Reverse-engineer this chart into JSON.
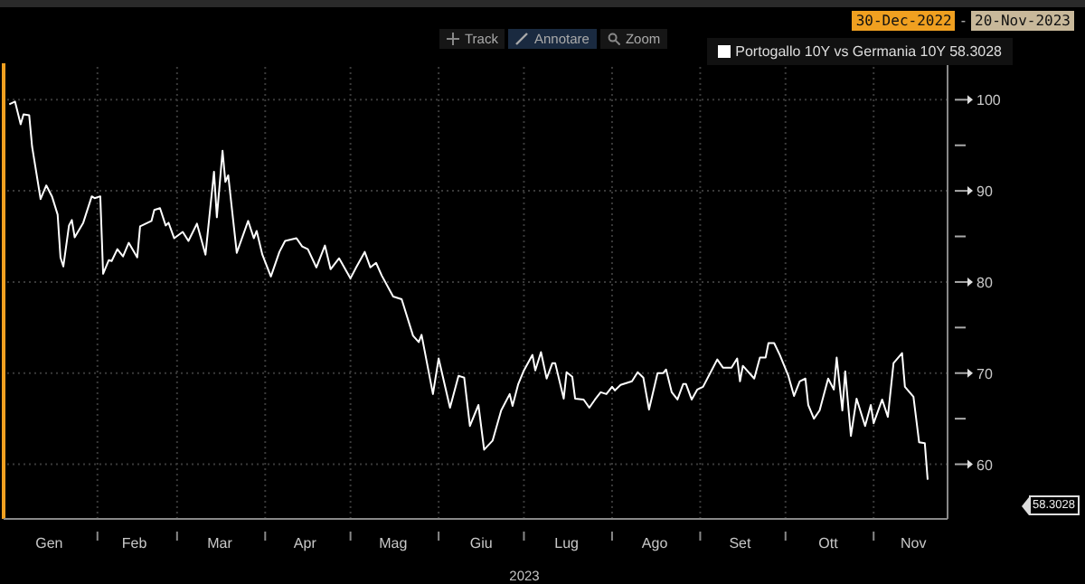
{
  "chart_data": {
    "type": "line",
    "xlabel": "2023",
    "x": [
      "2023-01-01",
      "2023-01-03",
      "2023-01-05",
      "2023-01-06",
      "2023-01-08",
      "2023-01-09",
      "2023-01-12",
      "2023-01-14",
      "2023-01-16",
      "2023-01-18",
      "2023-01-19",
      "2023-01-20",
      "2023-01-22",
      "2023-01-23",
      "2023-01-24",
      "2023-01-27",
      "2023-01-30",
      "2023-01-31",
      "2023-02-02",
      "2023-02-03",
      "2023-02-05",
      "2023-02-06",
      "2023-02-08",
      "2023-02-10",
      "2023-02-12",
      "2023-02-15",
      "2023-02-16",
      "2023-02-20",
      "2023-02-21",
      "2023-02-23",
      "2023-02-25",
      "2023-02-26",
      "2023-02-28",
      "2023-03-03",
      "2023-03-05",
      "2023-03-08",
      "2023-03-11",
      "2023-03-14",
      "2023-03-15",
      "2023-03-17",
      "2023-03-18",
      "2023-03-19",
      "2023-03-22",
      "2023-03-26",
      "2023-03-28",
      "2023-03-29",
      "2023-03-31",
      "2023-04-03",
      "2023-04-06",
      "2023-04-08",
      "2023-04-12",
      "2023-04-14",
      "2023-04-16",
      "2023-04-19",
      "2023-04-22",
      "2023-04-24",
      "2023-04-27",
      "2023-05-01",
      "2023-05-03",
      "2023-05-06",
      "2023-05-08",
      "2023-05-10",
      "2023-05-12",
      "2023-05-16",
      "2023-05-19",
      "2023-05-23",
      "2023-05-25",
      "2023-05-26",
      "2023-05-30",
      "2023-06-01",
      "2023-06-05",
      "2023-06-08",
      "2023-06-10",
      "2023-06-12",
      "2023-06-15",
      "2023-06-17",
      "2023-06-20",
      "2023-06-23",
      "2023-06-26",
      "2023-06-27",
      "2023-06-29",
      "2023-07-01",
      "2023-07-04",
      "2023-07-05",
      "2023-07-07",
      "2023-07-09",
      "2023-07-11",
      "2023-07-12",
      "2023-07-15",
      "2023-07-16",
      "2023-07-18",
      "2023-07-19",
      "2023-07-22",
      "2023-07-24",
      "2023-07-26",
      "2023-07-28",
      "2023-07-30",
      "2023-08-01",
      "2023-08-02",
      "2023-08-04",
      "2023-08-08",
      "2023-08-10",
      "2023-08-12",
      "2023-08-14",
      "2023-08-17",
      "2023-08-19",
      "2023-08-20",
      "2023-08-22",
      "2023-08-24",
      "2023-08-26",
      "2023-08-27",
      "2023-08-29",
      "2023-08-31",
      "2023-09-02",
      "2023-09-05",
      "2023-09-07",
      "2023-09-09",
      "2023-09-12",
      "2023-09-14",
      "2023-09-15",
      "2023-09-16",
      "2023-09-20",
      "2023-09-22",
      "2023-09-24",
      "2023-09-25",
      "2023-09-27",
      "2023-09-29",
      "2023-10-02",
      "2023-10-04",
      "2023-10-06",
      "2023-10-08",
      "2023-10-09",
      "2023-10-11",
      "2023-10-13",
      "2023-10-16",
      "2023-10-18",
      "2023-10-19",
      "2023-10-21",
      "2023-10-22",
      "2023-10-24",
      "2023-10-26",
      "2023-10-29",
      "2023-10-31",
      "2023-11-01",
      "2023-11-04",
      "2023-11-06",
      "2023-11-08",
      "2023-11-11",
      "2023-11-12",
      "2023-11-15",
      "2023-11-17",
      "2023-11-19",
      "2023-11-20"
    ],
    "series": [
      {
        "name": "Portogallo 10Y vs Germania 10Y 58.3028",
        "color": "#ffffff",
        "values": [
          99.5,
          99.8,
          97.3,
          98.4,
          98.3,
          94.9,
          89.1,
          90.6,
          89.4,
          87.4,
          82.7,
          81.7,
          86.2,
          86.8,
          84.9,
          86.5,
          89.4,
          89.2,
          89.4,
          80.9,
          82.4,
          82.3,
          83.6,
          82.8,
          84.3,
          82.7,
          86.1,
          86.7,
          87.9,
          88.1,
          86.2,
          86.5,
          84.8,
          85.5,
          84.5,
          86.4,
          83.0,
          92.1,
          87.1,
          94.4,
          91.0,
          91.7,
          83.2,
          86.7,
          84.8,
          85.6,
          83.0,
          80.6,
          83.3,
          84.5,
          84.8,
          83.9,
          83.6,
          81.6,
          84.0,
          81.4,
          82.6,
          80.4,
          81.6,
          83.3,
          81.6,
          82.1,
          80.7,
          78.4,
          78.1,
          74.1,
          73.4,
          74.2,
          67.7,
          71.6,
          66.2,
          69.7,
          69.5,
          64.2,
          66.5,
          61.6,
          62.6,
          65.9,
          67.7,
          66.4,
          68.8,
          70.3,
          72.0,
          70.3,
          72.3,
          69.4,
          71.1,
          71.1,
          67.2,
          70.1,
          69.6,
          67.2,
          67.1,
          66.2,
          67.1,
          67.9,
          67.7,
          68.5,
          68.1,
          68.7,
          69.1,
          70.1,
          69.5,
          66.0,
          70.0,
          70.0,
          70.4,
          67.9,
          67.1,
          68.8,
          68.8,
          67.1,
          68.2,
          68.5,
          70.3,
          71.5,
          70.6,
          70.6,
          71.6,
          69.1,
          70.8,
          69.4,
          71.7,
          71.7,
          73.3,
          73.3,
          72.0,
          69.7,
          67.5,
          69.1,
          69.4,
          66.5,
          65.0,
          65.9,
          69.4,
          68.2,
          71.7,
          65.9,
          70.2,
          63.1,
          67.2,
          64.2,
          66.5,
          64.5,
          67.1,
          65.2,
          71.1,
          72.2,
          68.5,
          67.4,
          62.4,
          62.3,
          58.3
        ]
      }
    ],
    "xlim": [
      "2022-12-30",
      "2023-11-27"
    ],
    "xticks": [
      {
        "value": "2023-01-15",
        "label": "Gen"
      },
      {
        "value": "2023-02-01",
        "label": null
      },
      {
        "value": "2023-02-14",
        "label": "Feb"
      },
      {
        "value": "2023-03-01",
        "label": null
      },
      {
        "value": "2023-03-16",
        "label": "Mar"
      },
      {
        "value": "2023-04-01",
        "label": null
      },
      {
        "value": "2023-04-15",
        "label": "Apr"
      },
      {
        "value": "2023-05-01",
        "label": null
      },
      {
        "value": "2023-05-16",
        "label": "Mag"
      },
      {
        "value": "2023-06-01",
        "label": null
      },
      {
        "value": "2023-06-16",
        "label": "Giu"
      },
      {
        "value": "2023-07-01",
        "label": null
      },
      {
        "value": "2023-07-16",
        "label": "Lug"
      },
      {
        "value": "2023-08-01",
        "label": null
      },
      {
        "value": "2023-08-16",
        "label": "Ago"
      },
      {
        "value": "2023-09-01",
        "label": null
      },
      {
        "value": "2023-09-15",
        "label": "Set"
      },
      {
        "value": "2023-10-01",
        "label": null
      },
      {
        "value": "2023-10-16",
        "label": "Ott"
      },
      {
        "value": "2023-11-01",
        "label": null
      },
      {
        "value": "2023-11-15",
        "label": "Nov"
      }
    ],
    "ylim": [
      54,
      104
    ],
    "yticks": [
      60,
      {
        "value": 65,
        "label": null
      },
      70,
      {
        "value": 75,
        "label": null
      },
      80,
      {
        "value": 85,
        "label": null
      },
      90,
      {
        "value": 95,
        "label": null
      },
      100
    ],
    "grid": true,
    "legend": "top right",
    "ref_lines": [
      {
        "axis": "x",
        "value": "2022-12-30",
        "label": null,
        "color": "#f0a020"
      }
    ],
    "annotations": [
      "30-Dec-2022",
      "-",
      "20-Nov-2023",
      "Track",
      "Annotare",
      "Zoom",
      "58.3028"
    ]
  }
}
